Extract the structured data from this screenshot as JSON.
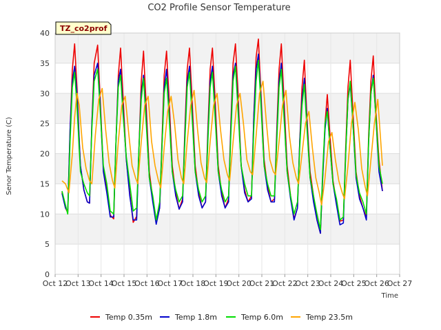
{
  "chart_data": {
    "type": "line",
    "title": "CO2 Profile Sensor Temperature",
    "xlabel": "Time",
    "ylabel": "Senor Temperature (C)",
    "site_tag": "TZ_co2prof",
    "xlim": [
      12,
      27
    ],
    "ylim": [
      0,
      40
    ],
    "x_ticks": [
      12,
      13,
      14,
      15,
      16,
      17,
      18,
      19,
      20,
      21,
      22,
      23,
      24,
      25,
      26,
      27
    ],
    "x_tick_labels": [
      "Oct 12",
      "Oct 13",
      "Oct 14",
      "Oct 15",
      "Oct 16",
      "Oct 17",
      "Oct 18",
      "Oct 19",
      "Oct 20",
      "Oct 21",
      "Oct 22",
      "Oct 23",
      "Oct 24",
      "Oct 25",
      "Oct 26",
      "Oct 27"
    ],
    "y_ticks": [
      0,
      5,
      10,
      15,
      20,
      25,
      30,
      35,
      40
    ],
    "grid": true,
    "legend_position": "bottom",
    "x_unit": "day of October (12 = Oct 12 00:00)",
    "series": [
      {
        "name": "Temp 0.35m",
        "color": "#ee0000",
        "x": [
          12.3,
          12.45,
          12.55,
          12.65,
          12.75,
          12.85,
          12.95,
          13.1,
          13.25,
          13.4,
          13.5,
          13.6,
          13.7,
          13.85,
          13.95,
          14.1,
          14.25,
          14.4,
          14.55,
          14.65,
          14.75,
          14.85,
          14.95,
          15.1,
          15.25,
          15.4,
          15.55,
          15.65,
          15.75,
          15.85,
          15.95,
          16.1,
          16.25,
          16.4,
          16.55,
          16.65,
          16.75,
          16.85,
          16.95,
          17.1,
          17.25,
          17.4,
          17.55,
          17.65,
          17.75,
          17.85,
          17.95,
          18.1,
          18.25,
          18.4,
          18.55,
          18.65,
          18.75,
          18.85,
          18.95,
          19.1,
          19.25,
          19.4,
          19.55,
          19.65,
          19.75,
          19.85,
          19.95,
          20.1,
          20.25,
          20.4,
          20.55,
          20.65,
          20.75,
          20.85,
          20.95,
          21.1,
          21.25,
          21.4,
          21.55,
          21.65,
          21.75,
          21.85,
          21.95,
          22.1,
          22.25,
          22.4,
          22.55,
          22.65,
          22.75,
          22.85,
          22.95,
          23.1,
          23.25,
          23.4,
          23.55,
          23.65,
          23.75,
          23.85,
          23.95,
          24.1,
          24.25,
          24.4,
          24.55,
          24.65,
          24.75,
          24.85,
          24.95,
          25.1,
          25.25,
          25.4,
          25.55,
          25.65,
          25.75,
          25.85,
          25.95,
          26.1,
          26.25
        ],
        "values": [
          13.6,
          11.0,
          10.2,
          24.0,
          34.0,
          38.2,
          31.0,
          18.0,
          14.0,
          12.0,
          11.8,
          25.0,
          35.0,
          38.0,
          30.0,
          17.5,
          14.0,
          9.8,
          9.2,
          22.0,
          33.0,
          37.5,
          30.0,
          19.0,
          13.5,
          8.6,
          9.6,
          21.0,
          32.0,
          37.0,
          29.0,
          17.0,
          12.5,
          8.5,
          11.0,
          22.0,
          33.0,
          37.0,
          30.0,
          18.0,
          13.5,
          10.8,
          12.5,
          24.0,
          34.0,
          37.5,
          30.0,
          18.0,
          13.5,
          11.0,
          12.0,
          24.0,
          34.0,
          37.5,
          30.0,
          18.0,
          13.5,
          11.0,
          12.5,
          25.0,
          35.0,
          38.2,
          31.0,
          18.0,
          14.0,
          12.0,
          13.0,
          26.0,
          36.0,
          39.0,
          31.0,
          19.0,
          14.5,
          12.0,
          12.5,
          24.0,
          34.0,
          38.2,
          30.0,
          18.0,
          13.0,
          9.2,
          11.0,
          22.0,
          31.0,
          35.5,
          27.0,
          17.0,
          13.0,
          9.0,
          6.8,
          16.0,
          25.0,
          29.8,
          24.0,
          15.5,
          12.0,
          8.8,
          9.0,
          21.0,
          31.0,
          35.5,
          28.0,
          17.0,
          13.0,
          11.0,
          9.5,
          23.0,
          32.0,
          36.2,
          28.0,
          19.0,
          13.8
        ]
      },
      {
        "name": "Temp 1.8m",
        "color": "#0000cc",
        "x": [
          12.3,
          12.45,
          12.55,
          12.65,
          12.75,
          12.85,
          12.95,
          13.1,
          13.25,
          13.4,
          13.5,
          13.6,
          13.7,
          13.85,
          13.95,
          14.1,
          14.25,
          14.4,
          14.55,
          14.65,
          14.75,
          14.85,
          14.95,
          15.1,
          15.25,
          15.4,
          15.55,
          15.65,
          15.75,
          15.85,
          15.95,
          16.1,
          16.25,
          16.4,
          16.55,
          16.65,
          16.75,
          16.85,
          16.95,
          17.1,
          17.25,
          17.4,
          17.55,
          17.65,
          17.75,
          17.85,
          17.95,
          18.1,
          18.25,
          18.4,
          18.55,
          18.65,
          18.75,
          18.85,
          18.95,
          19.1,
          19.25,
          19.4,
          19.55,
          19.65,
          19.75,
          19.85,
          19.95,
          20.1,
          20.25,
          20.4,
          20.55,
          20.65,
          20.75,
          20.85,
          20.95,
          21.1,
          21.25,
          21.4,
          21.55,
          21.65,
          21.75,
          21.85,
          21.95,
          22.1,
          22.25,
          22.4,
          22.55,
          22.65,
          22.75,
          22.85,
          22.95,
          23.1,
          23.25,
          23.4,
          23.55,
          23.65,
          23.75,
          23.85,
          23.95,
          24.1,
          24.25,
          24.4,
          24.55,
          24.65,
          24.75,
          24.85,
          24.95,
          25.1,
          25.25,
          25.4,
          25.55,
          25.65,
          25.75,
          25.85,
          25.95,
          26.1,
          26.25
        ],
        "values": [
          13.4,
          11.0,
          10.4,
          24.0,
          32.0,
          34.5,
          30.0,
          18.0,
          14.0,
          12.0,
          11.8,
          25.0,
          33.0,
          35.0,
          29.0,
          17.0,
          13.5,
          9.5,
          9.5,
          22.0,
          32.0,
          34.0,
          28.0,
          19.0,
          13.0,
          9.0,
          9.0,
          21.0,
          30.0,
          33.0,
          27.0,
          16.0,
          12.0,
          8.3,
          11.0,
          21.0,
          31.0,
          34.0,
          28.0,
          17.0,
          13.0,
          10.8,
          12.0,
          23.0,
          32.0,
          34.5,
          28.0,
          17.0,
          13.0,
          11.0,
          12.0,
          23.0,
          32.0,
          34.5,
          28.0,
          17.0,
          13.0,
          11.0,
          12.0,
          24.0,
          33.0,
          35.0,
          29.0,
          18.0,
          13.5,
          12.0,
          12.5,
          26.0,
          34.0,
          36.5,
          30.0,
          18.0,
          14.0,
          12.0,
          12.0,
          23.0,
          32.0,
          35.0,
          28.0,
          17.0,
          12.5,
          9.0,
          11.0,
          22.0,
          29.0,
          32.5,
          26.0,
          16.0,
          12.0,
          9.0,
          6.8,
          16.0,
          24.0,
          27.5,
          22.0,
          15.0,
          11.5,
          8.2,
          8.5,
          20.0,
          29.0,
          31.5,
          26.0,
          16.0,
          12.5,
          11.0,
          9.0,
          22.0,
          30.0,
          33.0,
          27.0,
          17.0,
          13.8
        ]
      },
      {
        "name": "Temp 6.0m",
        "color": "#00dd00",
        "x": [
          12.3,
          12.45,
          12.55,
          12.65,
          12.75,
          12.85,
          12.95,
          13.1,
          13.25,
          13.4,
          13.5,
          13.6,
          13.7,
          13.85,
          13.95,
          14.1,
          14.25,
          14.4,
          14.55,
          14.65,
          14.75,
          14.85,
          14.95,
          15.1,
          15.25,
          15.4,
          15.55,
          15.65,
          15.75,
          15.85,
          15.95,
          16.1,
          16.25,
          16.4,
          16.55,
          16.65,
          16.75,
          16.85,
          16.95,
          17.1,
          17.25,
          17.4,
          17.55,
          17.65,
          17.75,
          17.85,
          17.95,
          18.1,
          18.25,
          18.4,
          18.55,
          18.65,
          18.75,
          18.85,
          18.95,
          19.1,
          19.25,
          19.4,
          19.55,
          19.65,
          19.75,
          19.85,
          19.95,
          20.1,
          20.25,
          20.4,
          20.55,
          20.65,
          20.75,
          20.85,
          20.95,
          21.1,
          21.25,
          21.4,
          21.55,
          21.65,
          21.75,
          21.85,
          21.95,
          22.1,
          22.25,
          22.4,
          22.55,
          22.65,
          22.75,
          22.85,
          22.95,
          23.1,
          23.25,
          23.4,
          23.55,
          23.65,
          23.75,
          23.85,
          23.95,
          24.1,
          24.25,
          24.4,
          24.55,
          24.65,
          24.75,
          24.85,
          24.95,
          25.1,
          25.25,
          25.4,
          25.55,
          25.65,
          25.75,
          25.85,
          25.95,
          26.1,
          26.25
        ],
        "values": [
          13.8,
          11.5,
          10.0,
          22.0,
          31.0,
          33.5,
          28.0,
          17.0,
          15.0,
          13.5,
          13.0,
          24.0,
          32.0,
          34.0,
          28.0,
          18.0,
          15.0,
          10.5,
          10.0,
          22.0,
          31.0,
          33.0,
          27.0,
          19.5,
          15.0,
          10.5,
          11.0,
          21.0,
          29.0,
          32.5,
          26.0,
          16.0,
          13.0,
          9.0,
          12.0,
          21.0,
          30.0,
          32.5,
          27.0,
          17.0,
          14.0,
          12.0,
          13.0,
          22.0,
          31.0,
          33.5,
          27.0,
          17.0,
          14.0,
          12.0,
          13.0,
          22.0,
          31.0,
          33.5,
          27.0,
          17.0,
          14.0,
          12.0,
          13.0,
          23.0,
          32.0,
          34.5,
          28.0,
          18.0,
          15.0,
          13.0,
          13.0,
          24.0,
          32.0,
          35.5,
          29.0,
          18.0,
          15.0,
          13.0,
          13.0,
          22.0,
          31.0,
          34.0,
          27.0,
          17.0,
          13.0,
          10.0,
          12.0,
          21.0,
          28.0,
          31.5,
          25.0,
          16.0,
          13.0,
          10.0,
          7.4,
          17.0,
          25.0,
          27.0,
          22.0,
          15.0,
          12.5,
          9.0,
          9.5,
          20.0,
          29.0,
          32.0,
          26.0,
          16.5,
          13.5,
          12.0,
          10.0,
          22.0,
          30.0,
          32.5,
          27.0,
          18.0,
          15.0
        ]
      },
      {
        "name": "Temp 23.5m",
        "color": "#ffa500",
        "x": [
          12.3,
          12.45,
          12.6,
          12.75,
          12.85,
          12.95,
          13.05,
          13.2,
          13.35,
          13.5,
          13.6,
          13.75,
          13.9,
          14.05,
          14.2,
          14.35,
          14.5,
          14.6,
          14.75,
          14.9,
          15.05,
          15.2,
          15.35,
          15.5,
          15.6,
          15.75,
          15.9,
          16.05,
          16.2,
          16.35,
          16.5,
          16.6,
          16.75,
          16.9,
          17.05,
          17.2,
          17.35,
          17.5,
          17.6,
          17.75,
          17.9,
          18.05,
          18.2,
          18.35,
          18.5,
          18.6,
          18.75,
          18.9,
          19.05,
          19.2,
          19.35,
          19.5,
          19.6,
          19.75,
          19.9,
          20.05,
          20.2,
          20.35,
          20.5,
          20.6,
          20.75,
          20.9,
          21.05,
          21.2,
          21.35,
          21.5,
          21.6,
          21.75,
          21.9,
          22.05,
          22.2,
          22.35,
          22.5,
          22.6,
          22.75,
          22.9,
          23.05,
          23.2,
          23.35,
          23.5,
          23.6,
          23.75,
          23.9,
          24.05,
          24.2,
          24.35,
          24.5,
          24.6,
          24.75,
          24.9,
          25.05,
          25.2,
          25.35,
          25.5,
          25.6,
          25.75,
          25.9,
          26.05,
          26.25
        ],
        "values": [
          15.5,
          15.0,
          13.5,
          20.0,
          26.0,
          30.0,
          28.0,
          21.0,
          17.5,
          15.5,
          15.0,
          23.0,
          29.0,
          30.8,
          24.0,
          18.5,
          15.5,
          14.3,
          22.0,
          28.0,
          29.5,
          23.5,
          18.0,
          16.0,
          15.0,
          22.0,
          28.0,
          29.5,
          22.0,
          18.0,
          15.5,
          14.3,
          21.0,
          27.0,
          29.5,
          25.0,
          19.0,
          16.0,
          15.0,
          22.0,
          28.0,
          30.5,
          24.0,
          18.5,
          16.0,
          15.2,
          22.0,
          28.0,
          30.0,
          24.0,
          19.0,
          16.5,
          15.5,
          22.0,
          28.0,
          30.0,
          25.0,
          19.0,
          17.0,
          16.5,
          23.0,
          30.0,
          32.0,
          25.0,
          19.0,
          17.0,
          16.5,
          22.0,
          28.0,
          30.5,
          23.0,
          18.5,
          16.0,
          15.0,
          20.0,
          25.0,
          27.0,
          21.0,
          16.0,
          13.5,
          11.5,
          16.0,
          22.0,
          23.5,
          19.0,
          15.5,
          13.5,
          12.5,
          18.0,
          25.0,
          28.5,
          24.0,
          17.5,
          14.5,
          13.0,
          19.0,
          25.0,
          29.0,
          18.0
        ]
      }
    ]
  }
}
